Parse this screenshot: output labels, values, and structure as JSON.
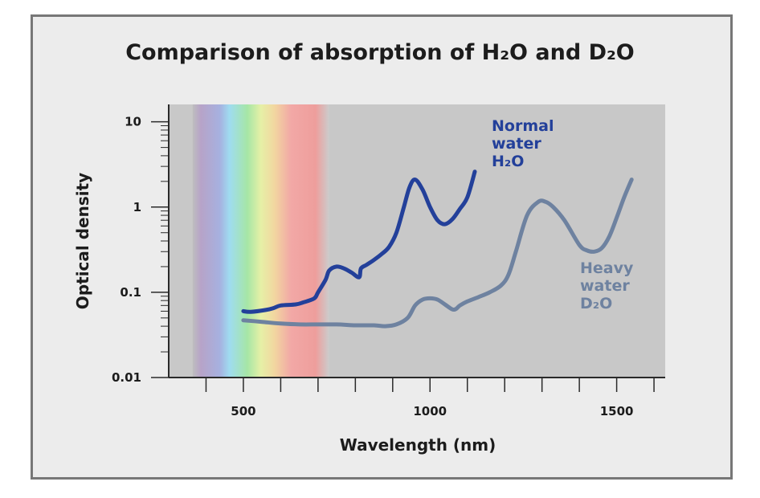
{
  "chart_data": {
    "type": "line",
    "title": "Comparison of absorption of H₂O and D₂O",
    "xlabel": "Wavelength (nm)",
    "ylabel": "Optical density",
    "yscale": "log",
    "xlim": [
      300,
      1630
    ],
    "ylim": [
      0.01,
      16
    ],
    "x_ticks": [
      500,
      1000,
      1500
    ],
    "x_tick_labels": [
      "500",
      "1000",
      "1500"
    ],
    "y_ticks": [
      0.01,
      0.1,
      1,
      10
    ],
    "y_tick_labels": [
      "0.01",
      "0.1",
      "1",
      "10"
    ],
    "visible_spectrum_nm": [
      390,
      730
    ],
    "series": [
      {
        "name": "Normal water H₂O",
        "label_lines": [
          "Normal",
          "water",
          "H₂O"
        ],
        "color": "#23409a",
        "x": [
          500,
          520,
          560,
          580,
          600,
          640,
          660,
          690,
          700,
          720,
          730,
          750,
          770,
          790,
          810,
          815,
          830,
          850,
          870,
          890,
          910,
          930,
          945,
          960,
          980,
          1000,
          1020,
          1040,
          1060,
          1080,
          1100,
          1120
        ],
        "y": [
          0.06,
          0.059,
          0.062,
          0.065,
          0.07,
          0.072,
          0.076,
          0.085,
          0.1,
          0.14,
          0.18,
          0.2,
          0.19,
          0.17,
          0.15,
          0.19,
          0.21,
          0.24,
          0.28,
          0.34,
          0.5,
          1.0,
          1.7,
          2.1,
          1.6,
          1.0,
          0.7,
          0.63,
          0.72,
          0.95,
          1.3,
          2.6
        ]
      },
      {
        "name": "Heavy water D₂O",
        "label_lines": [
          "Heavy",
          "water",
          "D₂O"
        ],
        "color": "#6e82a0",
        "x": [
          500,
          550,
          600,
          650,
          700,
          750,
          800,
          850,
          880,
          910,
          940,
          960,
          980,
          1000,
          1020,
          1040,
          1060,
          1070,
          1080,
          1100,
          1130,
          1160,
          1190,
          1210,
          1230,
          1260,
          1290,
          1310,
          1330,
          1360,
          1400,
          1420,
          1440,
          1460,
          1480,
          1500,
          1520,
          1540
        ],
        "y": [
          0.047,
          0.045,
          0.043,
          0.042,
          0.042,
          0.042,
          0.041,
          0.041,
          0.04,
          0.042,
          0.05,
          0.07,
          0.082,
          0.085,
          0.082,
          0.072,
          0.063,
          0.064,
          0.07,
          0.078,
          0.088,
          0.1,
          0.12,
          0.16,
          0.3,
          0.8,
          1.15,
          1.15,
          1.0,
          0.7,
          0.36,
          0.31,
          0.3,
          0.33,
          0.45,
          0.75,
          1.3,
          2.1
        ]
      }
    ]
  }
}
